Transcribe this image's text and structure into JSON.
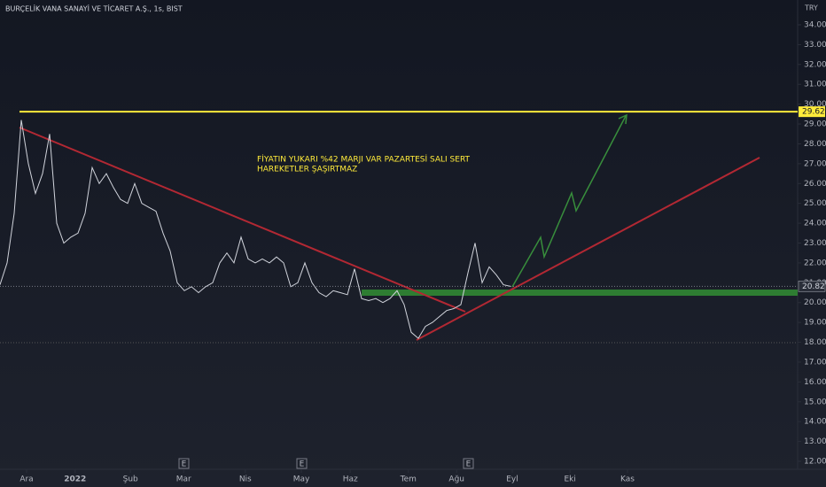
{
  "chart_data": {
    "type": "line",
    "title": "BURÇELİK VANA SANAYİ VE TİCARET A.Ş., 1s, BIST",
    "currency": "TRY",
    "annotation": [
      "FİYATIN YUKARI %42 MARJI VAR PAZARTESİ SALI SERT",
      "HAREKETLER ŞAŞIRTMAZ"
    ],
    "events": [
      "E",
      "E",
      "E"
    ],
    "color": "#d1d4dc",
    "level": 29.62,
    "level_color": "#ffeb3b",
    "values": [
      20.9,
      22,
      24.5,
      29.2,
      27,
      25.5,
      26.5,
      28.5,
      24,
      23,
      23.3,
      23.5,
      24.5,
      26.8,
      26,
      26.5,
      25.8,
      25.2,
      25,
      26,
      25,
      24.8,
      24.6,
      23.5,
      22.6,
      21,
      20.6,
      20.8,
      20.5,
      20.8,
      21,
      22,
      22.5,
      22,
      23.3,
      22.2,
      22,
      22.2,
      22,
      22.3,
      22,
      20.8,
      21,
      22,
      21,
      20.5,
      20.3,
      20.6,
      20.5,
      20.4,
      21.7,
      20.2,
      20.1,
      20.2,
      20,
      20.2,
      20.6,
      19.9,
      18.5,
      18.2,
      18.8,
      19,
      19.3,
      19.6,
      19.7,
      19.9,
      21.5,
      23,
      21,
      21.8,
      21.4,
      20.9,
      20.82
    ],
    "xlim": [
      0,
      112.5
    ],
    "xticks": [
      {
        "value": 3.75,
        "label": "Ara"
      },
      {
        "value": 10.6,
        "label": "2022"
      },
      {
        "value": 18.4,
        "label": "Şub"
      },
      {
        "value": 25.9,
        "label": "Mar"
      },
      {
        "value": 34.6,
        "label": "Nis"
      },
      {
        "value": 42.5,
        "label": "May"
      },
      {
        "value": 49.4,
        "label": "Haz"
      },
      {
        "value": 57.6,
        "label": "Tem"
      },
      {
        "value": 64.4,
        "label": "Ağu"
      },
      {
        "value": 72.25,
        "label": "Eyl"
      },
      {
        "value": 80.4,
        "label": "Eki"
      },
      {
        "value": 88.5,
        "label": "Kas"
      }
    ],
    "ylim": [
      12,
      34
    ],
    "yticks": [
      {
        "value": 12,
        "label": "12.00"
      },
      {
        "value": 13,
        "label": "13.00"
      },
      {
        "value": 14,
        "label": "14.00"
      },
      {
        "value": 15,
        "label": "15.00"
      },
      {
        "value": 16,
        "label": "16.00"
      },
      {
        "value": 17,
        "label": "17.00"
      },
      {
        "value": 18,
        "label": "18.00"
      },
      {
        "value": 19,
        "label": "19.00"
      },
      {
        "value": 20,
        "label": "20.00"
      },
      {
        "value": 21,
        "label": "21.00"
      },
      {
        "value": 22,
        "label": "22.00"
      },
      {
        "value": 23,
        "label": "23.00"
      },
      {
        "value": 24,
        "label": "24.00"
      },
      {
        "value": 25,
        "label": "25.00"
      },
      {
        "value": 26,
        "label": "26.00"
      },
      {
        "value": 27,
        "label": "27.00"
      },
      {
        "value": 28,
        "label": "28.00"
      },
      {
        "value": 29,
        "label": "29.00"
      },
      {
        "value": 30,
        "label": "30.00"
      },
      {
        "value": 31,
        "label": "31.00"
      },
      {
        "value": 32,
        "label": "32.00"
      },
      {
        "value": 33,
        "label": "33.00"
      },
      {
        "value": 34,
        "label": "34.00"
      }
    ],
    "grid": false
  }
}
